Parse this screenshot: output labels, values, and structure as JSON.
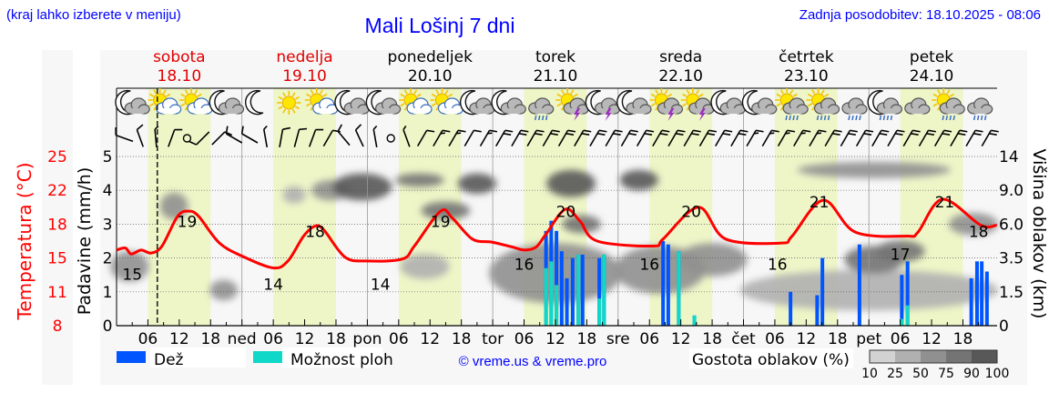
{
  "header": {
    "hint": "(kraj lahko izberete v meniju)",
    "title": "Mali Lošinj 7 dni",
    "updated": "Zadnja posodobitev: 18.10.2025 - 08:06"
  },
  "days": [
    {
      "name": "sobota",
      "date": "18.10",
      "weekend": true
    },
    {
      "name": "nedelja",
      "date": "19.10",
      "weekend": true
    },
    {
      "name": "ponedeljek",
      "date": "20.10",
      "weekend": false
    },
    {
      "name": "torek",
      "date": "21.10",
      "weekend": false
    },
    {
      "name": "sreda",
      "date": "22.10",
      "weekend": false
    },
    {
      "name": "četrtek",
      "date": "23.10",
      "weekend": false
    },
    {
      "name": "petek",
      "date": "24.10",
      "weekend": false
    }
  ],
  "legend": {
    "rain": "Dež",
    "showers": "Možnost ploh",
    "copyright": "© vreme.us & vreme.pro",
    "cloud_density": "Gostota oblakov (%)",
    "density_scale": [
      "10",
      "25",
      "50",
      "75",
      "90",
      "100"
    ]
  },
  "colors": {
    "rain": "#0055ff",
    "showers": "#10d8c8",
    "temperature": "#ff0000",
    "daylight": "#eef6c8",
    "weekend": "#e00000",
    "title": "#0000ff",
    "density": [
      "#d2d2d2",
      "#b0b0b0",
      "#909090",
      "#747474",
      "#585858"
    ]
  },
  "icons": [
    "moon-cloud",
    "sun-cloud",
    "sun-cloud",
    "moon-cloud",
    "moon",
    "sun",
    "sun-cloud",
    "moon-cloud",
    "moon-cloud",
    "sun-cloud",
    "sun-cloud",
    "moon-cloud",
    "moon-cloud",
    "cloud-rain",
    "sun-thunder",
    "moon-thunder",
    "moon-cloud",
    "sun-thunder",
    "sun-thunder",
    "moon-cloud",
    "moon-cloud",
    "sun-cloud-rain",
    "sun-cloud-rain",
    "cloud-rain",
    "moon-cloud-rain",
    "cloud",
    "sun-cloud-rain",
    "cloud-rain"
  ],
  "wind": {
    "directions": [
      290,
      340,
      355,
      20,
      0,
      225,
      45,
      300,
      300,
      350,
      10,
      15,
      20,
      30,
      320,
      335,
      350,
      0,
      340,
      30,
      30,
      30,
      30,
      30,
      30,
      30,
      30,
      30,
      30,
      30,
      30,
      30,
      30,
      30,
      30,
      30,
      30,
      30,
      30,
      30,
      30,
      30,
      30,
      30,
      30,
      30,
      30,
      30,
      30,
      30,
      30,
      30,
      30,
      30,
      30,
      30
    ],
    "speeds": [
      10,
      8,
      6,
      8,
      0,
      10,
      8,
      10,
      8,
      6,
      8,
      10,
      10,
      8,
      10,
      8,
      6,
      0,
      5,
      12,
      15,
      15,
      12,
      15,
      18,
      18,
      18,
      20,
      20,
      20,
      18,
      20,
      18,
      18,
      20,
      20,
      20,
      18,
      18,
      20,
      15,
      15,
      15,
      15,
      15,
      18,
      18,
      18,
      18,
      18,
      20,
      20,
      20,
      20,
      22,
      22
    ]
  },
  "chart_data": {
    "type": "line",
    "title": "Mali Lošinj 7 dni",
    "x_unit": "hours from 18.10 00:00",
    "xlim": [
      0,
      168
    ],
    "x_tick_labels": [
      {
        "h": 6,
        "label": "06"
      },
      {
        "h": 12,
        "label": "12"
      },
      {
        "h": 18,
        "label": "18"
      },
      {
        "h": 24,
        "label": "ned"
      },
      {
        "h": 30,
        "label": "06"
      },
      {
        "h": 36,
        "label": "12"
      },
      {
        "h": 42,
        "label": "18"
      },
      {
        "h": 48,
        "label": "pon"
      },
      {
        "h": 54,
        "label": "06"
      },
      {
        "h": 60,
        "label": "12"
      },
      {
        "h": 66,
        "label": "18"
      },
      {
        "h": 72,
        "label": "tor"
      },
      {
        "h": 78,
        "label": "06"
      },
      {
        "h": 84,
        "label": "12"
      },
      {
        "h": 90,
        "label": "18"
      },
      {
        "h": 96,
        "label": "sre"
      },
      {
        "h": 102,
        "label": "06"
      },
      {
        "h": 108,
        "label": "12"
      },
      {
        "h": 114,
        "label": "18"
      },
      {
        "h": 120,
        "label": "čet"
      },
      {
        "h": 126,
        "label": "06"
      },
      {
        "h": 132,
        "label": "12"
      },
      {
        "h": 138,
        "label": "18"
      },
      {
        "h": 144,
        "label": "pet"
      },
      {
        "h": 150,
        "label": "06"
      },
      {
        "h": 156,
        "label": "12"
      },
      {
        "h": 162,
        "label": "18"
      }
    ],
    "current_time_h": 7.8,
    "temperature": {
      "label": "Temperatura (°C)",
      "ticks": [
        "8",
        "11",
        "15",
        "18",
        "22",
        "25"
      ],
      "ylim": [
        8,
        25
      ],
      "points": [
        [
          0,
          15.6
        ],
        [
          1.7,
          15.8
        ],
        [
          2.8,
          15.2
        ],
        [
          4.7,
          15.6
        ],
        [
          6.6,
          15.3
        ],
        [
          8.7,
          16.0
        ],
        [
          11.7,
          19.0
        ],
        [
          13.8,
          19.5
        ],
        [
          15.7,
          19.0
        ],
        [
          19.7,
          16.3
        ],
        [
          24.4,
          14.9
        ],
        [
          30,
          13.8
        ],
        [
          32.8,
          14.5
        ],
        [
          35.8,
          17.0
        ],
        [
          38,
          18.0
        ],
        [
          39.7,
          17.6
        ],
        [
          43.7,
          14.9
        ],
        [
          47.8,
          14.5
        ],
        [
          54.7,
          14.7
        ],
        [
          57,
          16.0
        ],
        [
          62,
          19.5
        ],
        [
          64.3,
          18.8
        ],
        [
          68.1,
          16.7
        ],
        [
          71.8,
          16.4
        ],
        [
          75.8,
          15.9
        ],
        [
          78.1,
          15.6
        ],
        [
          80.3,
          15.9
        ],
        [
          82.2,
          17.2
        ],
        [
          85.9,
          19.7
        ],
        [
          88.7,
          18.5
        ],
        [
          92,
          16.5
        ],
        [
          102.7,
          16.0
        ],
        [
          104.6,
          16.7
        ],
        [
          111.4,
          19.9
        ],
        [
          116.6,
          16.7
        ],
        [
          127.2,
          16.3
        ],
        [
          129.3,
          17.0
        ],
        [
          135.3,
          20.6
        ],
        [
          141.4,
          17.4
        ],
        [
          151.3,
          17.0
        ],
        [
          153.4,
          17.4
        ],
        [
          158.1,
          20.7
        ],
        [
          165.4,
          18.1
        ],
        [
          168.5,
          18.1
        ]
      ],
      "extreme_labels": [
        {
          "h": 3,
          "t": 15,
          "label": "15",
          "kind": "min"
        },
        {
          "h": 13.5,
          "t": 19,
          "label": "19",
          "kind": "max"
        },
        {
          "h": 30,
          "t": 14,
          "label": "14",
          "kind": "min"
        },
        {
          "h": 38,
          "t": 18,
          "label": "18",
          "kind": "max"
        },
        {
          "h": 50.5,
          "t": 14,
          "label": "14",
          "kind": "min"
        },
        {
          "h": 62,
          "t": 19,
          "label": "19",
          "kind": "max"
        },
        {
          "h": 78,
          "t": 16,
          "label": "16",
          "kind": "min"
        },
        {
          "h": 86,
          "t": 20,
          "label": "20",
          "kind": "max"
        },
        {
          "h": 102,
          "t": 16,
          "label": "16",
          "kind": "min"
        },
        {
          "h": 110,
          "t": 20,
          "label": "20",
          "kind": "max"
        },
        {
          "h": 126.5,
          "t": 16,
          "label": "16",
          "kind": "min"
        },
        {
          "h": 134.5,
          "t": 21,
          "label": "21",
          "kind": "max"
        },
        {
          "h": 150,
          "t": 17,
          "label": "17",
          "kind": "min"
        },
        {
          "h": 158.5,
          "t": 21,
          "label": "21",
          "kind": "max"
        },
        {
          "h": 165,
          "t": 18,
          "label": "18",
          "kind": "max"
        }
      ]
    },
    "precipitation": {
      "label": "Padavine (mm/h)",
      "ticks": [
        "0",
        "1",
        "2",
        "3",
        "4",
        "5"
      ],
      "ylim": [
        0,
        5
      ],
      "bars": [
        {
          "h": 82.2,
          "total": 2.8,
          "showers": 1.7
        },
        {
          "h": 83.2,
          "total": 3.1,
          "showers": 1.9
        },
        {
          "h": 84.2,
          "total": 2.8,
          "showers": 1.2
        },
        {
          "h": 85.2,
          "total": 2.2,
          "showers": 0
        },
        {
          "h": 86.2,
          "total": 1.4,
          "showers": 0
        },
        {
          "h": 87.3,
          "total": 2.0,
          "showers": 0
        },
        {
          "h": 88.4,
          "total": 2.1,
          "showers": 2.1
        },
        {
          "h": 89.2,
          "total": 2.1,
          "showers": 0
        },
        {
          "h": 92.4,
          "total": 2.0,
          "showers": 0.8
        },
        {
          "h": 93.3,
          "total": 2.1,
          "showers": 2.1
        },
        {
          "h": 104.6,
          "total": 2.5,
          "showers": 0
        },
        {
          "h": 105.6,
          "total": 2.4,
          "showers": 0
        },
        {
          "h": 107.6,
          "total": 2.2,
          "showers": 2.2
        },
        {
          "h": 110.6,
          "total": 0.3,
          "showers": 0.3
        },
        {
          "h": 129.0,
          "total": 1.0,
          "showers": 0
        },
        {
          "h": 134.1,
          "total": 0.9,
          "showers": 0
        },
        {
          "h": 135.1,
          "total": 2.0,
          "showers": 0
        },
        {
          "h": 142.2,
          "total": 2.4,
          "showers": 0
        },
        {
          "h": 150.3,
          "total": 1.5,
          "showers": 0.2
        },
        {
          "h": 151.4,
          "total": 1.9,
          "showers": 0.6
        },
        {
          "h": 163.6,
          "total": 1.4,
          "showers": 0
        },
        {
          "h": 164.7,
          "total": 1.9,
          "showers": 0
        },
        {
          "h": 165.6,
          "total": 1.9,
          "showers": 0
        },
        {
          "h": 166.6,
          "total": 1.6,
          "showers": 0
        }
      ]
    },
    "cloud_height": {
      "label": "Višina oblakov (km)",
      "ticks": [
        "0",
        "1.5",
        "3.5",
        "6.0",
        "9.0",
        "14"
      ],
      "tick_values": [
        0,
        1.5,
        3.5,
        6.0,
        9.0,
        14
      ],
      "blobs": [
        {
          "h": 2.5,
          "km": 3.0,
          "dh": 3,
          "dk": 1.0,
          "density": 50
        },
        {
          "h": 11,
          "km": 7.6,
          "dh": 2,
          "dk": 1.2,
          "density": 60
        },
        {
          "h": 20.5,
          "km": 1.6,
          "dh": 2,
          "dk": 0.6,
          "density": 50
        },
        {
          "h": 34,
          "km": 8.6,
          "dh": 1.5,
          "dk": 1.0,
          "density": 40
        },
        {
          "h": 41,
          "km": 9.0,
          "dh": 3,
          "dk": 1.5,
          "density": 60
        },
        {
          "h": 47,
          "km": 9.5,
          "dh": 5,
          "dk": 2.0,
          "density": 90
        },
        {
          "h": 58,
          "km": 10.5,
          "dh": 4,
          "dk": 1.0,
          "density": 75
        },
        {
          "h": 63,
          "km": 7.2,
          "dh": 4,
          "dk": 0.8,
          "density": 75
        },
        {
          "h": 69,
          "km": 10,
          "dh": 3,
          "dk": 1.5,
          "density": 90
        },
        {
          "h": 59,
          "km": 3.0,
          "dh": 4,
          "dk": 0.8,
          "density": 40
        },
        {
          "h": 84,
          "km": 2.6,
          "dh": 12,
          "dk": 2.0,
          "density": 50
        },
        {
          "h": 87,
          "km": 10,
          "dh": 4,
          "dk": 2.0,
          "density": 90
        },
        {
          "h": 89,
          "km": 6.0,
          "dh": 3,
          "dk": 0.8,
          "density": 75
        },
        {
          "h": 100,
          "km": 10.5,
          "dh": 3,
          "dk": 1.5,
          "density": 90
        },
        {
          "h": 104,
          "km": 2.8,
          "dh": 8,
          "dk": 1.6,
          "density": 50
        },
        {
          "h": 114,
          "km": 3.4,
          "dh": 6,
          "dk": 1.2,
          "density": 50
        },
        {
          "h": 144,
          "km": 1.6,
          "dh": 24,
          "dk": 1.2,
          "density": 40
        },
        {
          "h": 145,
          "km": 12,
          "dh": 14,
          "dk": 1.2,
          "density": 60
        },
        {
          "h": 145,
          "km": 3.4,
          "dh": 5,
          "dk": 1.0,
          "density": 75
        },
        {
          "h": 150,
          "km": 4.0,
          "dh": 4,
          "dk": 0.8,
          "density": 75
        },
        {
          "h": 164,
          "km": 6.0,
          "dh": 4,
          "dk": 1.0,
          "density": 60
        }
      ]
    }
  }
}
